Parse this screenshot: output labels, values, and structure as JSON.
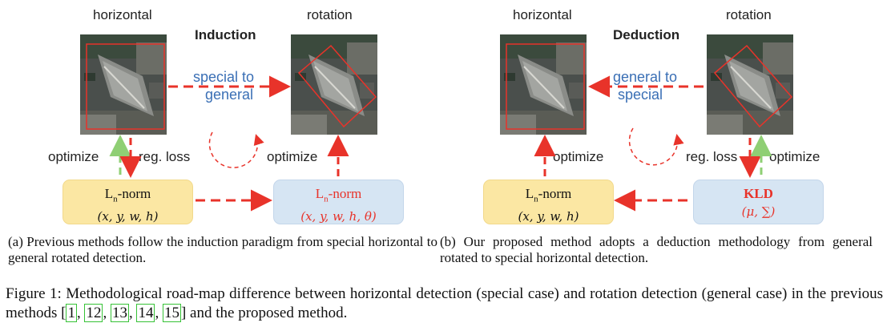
{
  "left": {
    "title": "Induction",
    "img_left_label": "horizontal",
    "img_right_label": "rotation",
    "arrow_text_l1": "special to",
    "arrow_text_l2": "general",
    "optimize_left": "optimize",
    "reg_loss": "reg. loss",
    "optimize_right": "optimize",
    "box_left_l1": "L",
    "box_left_sub": "n",
    "box_left_suffix": "-norm",
    "box_left_l2": "(x, y, w, h)",
    "box_right_l1": "L",
    "box_right_sub": "n",
    "box_right_suffix": "-norm",
    "box_right_l2": "(x, y, w, h, θ)",
    "caption": "(a) Previous methods follow the induction paradigm from special horizontal to general rotated detection."
  },
  "right": {
    "title": "Deduction",
    "img_left_label": "horizontal",
    "img_right_label": "rotation",
    "arrow_text_l1": "general to",
    "arrow_text_l2": "special",
    "optimize_left": "optimize",
    "reg_loss": "reg. loss",
    "optimize_right": "optimize",
    "box_left_l1": "L",
    "box_left_sub": "n",
    "box_left_suffix": "-norm",
    "box_left_l2": "(x, y, w, h)",
    "box_right_l1": "KLD",
    "box_right_l2": "(μ, ∑)",
    "caption": "(b) Our proposed method adopts a deduction methodology from general rotated to special horizontal detection."
  },
  "figure_caption": {
    "prefix": "Figure 1: Methodological road-map difference between horizontal detection (special case) and rotation detection (general case) in the previous methods [",
    "cites": [
      "1",
      "12",
      "13",
      "14",
      "15"
    ],
    "suffix": "] and the proposed method."
  },
  "colors": {
    "arrow_red": "#e8332a",
    "arrow_green": "#8fcf74",
    "text_blue": "#3a6fb5",
    "box_yellow": "#fbe7a3",
    "box_blue": "#d6e5f3"
  }
}
